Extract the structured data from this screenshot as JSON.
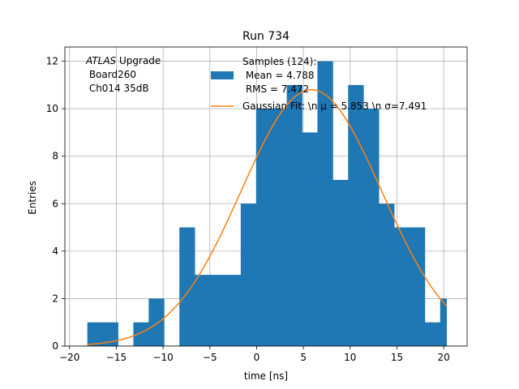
{
  "chart_data": {
    "type": "bar",
    "title": "Run 734",
    "xlabel": "time [ns]",
    "ylabel": "Entries",
    "xlim": [
      -20.5,
      22.5
    ],
    "ylim": [
      0,
      12.6
    ],
    "x_ticks": [
      -20,
      -15,
      -10,
      -5,
      0,
      5,
      10,
      15,
      20
    ],
    "x_tick_labels": [
      "−20",
      "−15",
      "−10",
      "−5",
      "0",
      "5",
      "10",
      "15",
      "20"
    ],
    "y_ticks": [
      0,
      2,
      4,
      6,
      8,
      10,
      12
    ],
    "y_tick_labels": [
      "0",
      "2",
      "4",
      "6",
      "8",
      "10",
      "12"
    ],
    "grid": true,
    "bin_edges": [
      -18.1,
      -16.46,
      -14.82,
      -13.18,
      -11.54,
      -9.9,
      -8.26,
      -6.62,
      -4.98,
      -3.34,
      -1.7,
      -0.06,
      1.58,
      3.22,
      4.86,
      6.5,
      8.14,
      9.78,
      11.42,
      13.06,
      14.7,
      16.34,
      17.98,
      19.62,
      20.3
    ],
    "series": [
      {
        "name": "Samples (124):\n Mean = 4.788\n RMS = 7.472",
        "kind": "histogram",
        "color": "#1f77b4",
        "values": [
          1,
          1,
          0,
          1,
          2,
          0,
          5,
          3,
          3,
          3,
          6,
          10,
          10,
          11,
          9,
          12,
          7,
          11,
          10,
          6,
          5,
          5,
          1,
          2
        ]
      },
      {
        "name": "Gaussian Fit: \\n μ = 5.853 \\n σ=7.491",
        "kind": "line",
        "color": "#ff7f0e",
        "x_range": [
          -18.1,
          20.3
        ],
        "amplitude": 10.8,
        "mu": 5.853,
        "sigma": 7.491
      }
    ],
    "legend": {
      "placement": "top-right",
      "hist_lines": [
        "Samples (124):",
        " Mean = 4.788",
        " RMS = 7.472"
      ],
      "fit_label": "Gaussian Fit: \\n μ = 5.853 \\n σ=7.491"
    },
    "annotation": {
      "italic_word": "ATLAS",
      "rest": " Upgrade",
      "line2": " Board260",
      "line3": " Ch014 35dB"
    }
  }
}
